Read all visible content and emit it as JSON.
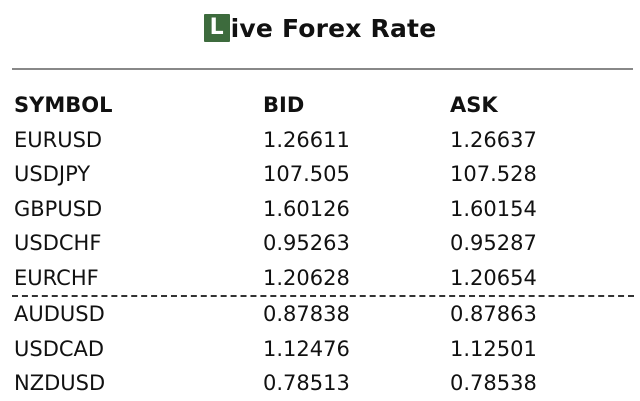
{
  "header": {
    "logo_letter": "L",
    "title": "ive Forex Rate"
  },
  "table": {
    "columns": [
      "SYMBOL",
      "BID",
      "ASK"
    ],
    "rows": [
      {
        "symbol": "EURUSD",
        "bid": "1.26611",
        "ask": "1.26637"
      },
      {
        "symbol": "USDJPY",
        "bid": "107.505",
        "ask": "107.528"
      },
      {
        "symbol": "GBPUSD",
        "bid": "1.60126",
        "ask": "1.60154"
      },
      {
        "symbol": "USDCHF",
        "bid": "0.95263",
        "ask": "0.95287"
      },
      {
        "symbol": "EURCHF",
        "bid": "1.20628",
        "ask": "1.20654"
      },
      {
        "symbol": "AUDUSD",
        "bid": "0.87838",
        "ask": "0.87863"
      },
      {
        "symbol": "USDCAD",
        "bid": "1.12476",
        "ask": "1.12501"
      },
      {
        "symbol": "NZDUSD",
        "bid": "0.78513",
        "ask": "0.78538"
      }
    ]
  },
  "colors": {
    "logo_bg": "#3d6b3d",
    "text": "#111111"
  }
}
